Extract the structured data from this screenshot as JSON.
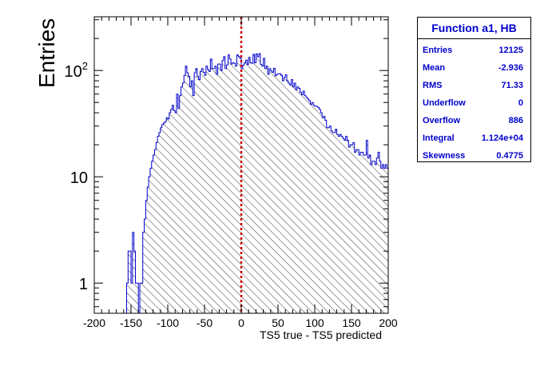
{
  "chart_data": {
    "type": "histogram",
    "title": "",
    "xlabel": "TS5 true - TS5 predicted",
    "ylabel": "Entries",
    "xlim": [
      -200,
      200
    ],
    "ylim": [
      0.52,
      320
    ],
    "yscale": "log",
    "x_ticks": [
      "-200",
      "-150",
      "-100",
      "-50",
      "0",
      "50",
      "100",
      "150",
      "200"
    ],
    "y_ticks": [
      {
        "value": 1,
        "label": "1"
      },
      {
        "value": 10,
        "label": "10"
      },
      {
        "value": 100,
        "label": "10^2"
      }
    ],
    "reference_line": {
      "x": 0,
      "color": "#cc0000",
      "style": "dashed"
    },
    "bin_width": 2,
    "series": [
      {
        "fill": "hatched",
        "color": "#0000cc",
        "bins_x_start": -156,
        "values": [
          1,
          2,
          2,
          1,
          3,
          2,
          1,
          1,
          0,
          1,
          1,
          3,
          4,
          6,
          8,
          10,
          12,
          14,
          16,
          18,
          21,
          24,
          26,
          29,
          31,
          32,
          33,
          36,
          35,
          40,
          43,
          47,
          42,
          40,
          60,
          44,
          58,
          70,
          76,
          90,
          110,
          95,
          88,
          70,
          80,
          58,
          95,
          104,
          88,
          82,
          98,
          104,
          96,
          90,
          110,
          102,
          98,
          128,
          104,
          104,
          110,
          92,
          115,
          115,
          100,
          124,
          135,
          104,
          113,
          140,
          128,
          115,
          118,
          117,
          110,
          140,
          135,
          130,
          104,
          112,
          118,
          125,
          114,
          133,
          118,
          117,
          142,
          118,
          143,
          134,
          144,
          114,
          110,
          130,
          104,
          110,
          92,
          104,
          99,
          96,
          105,
          89,
          92,
          93,
          93,
          90,
          80,
          86,
          91,
          80,
          76,
          73,
          82,
          70,
          76,
          66,
          70,
          68,
          62,
          59,
          64,
          58,
          56,
          54,
          52,
          48,
          50,
          47,
          46,
          46,
          45,
          43,
          40,
          36,
          37,
          34,
          29,
          29,
          30,
          27,
          26,
          26,
          28,
          25,
          24,
          25,
          24,
          23,
          22,
          24,
          22,
          19,
          20,
          20,
          21,
          17,
          18,
          18,
          16,
          17,
          17,
          16,
          16,
          22,
          15,
          16,
          13,
          14,
          14,
          13,
          15,
          17,
          14,
          12,
          13,
          12,
          13,
          12,
          11,
          14,
          11,
          9,
          12,
          11,
          10,
          12
        ]
      }
    ]
  },
  "stats_box": {
    "title": "Function a1, HB",
    "rows": [
      {
        "label": "Entries",
        "value": "12125"
      },
      {
        "label": "Mean",
        "value": "-2.936"
      },
      {
        "label": "RMS",
        "value": "71.33"
      },
      {
        "label": "Underflow",
        "value": "0"
      },
      {
        "label": "Overflow",
        "value": "886"
      },
      {
        "label": "Integral",
        "value": "1.124e+04"
      },
      {
        "label": "Skewness",
        "value": "0.4775"
      }
    ]
  }
}
